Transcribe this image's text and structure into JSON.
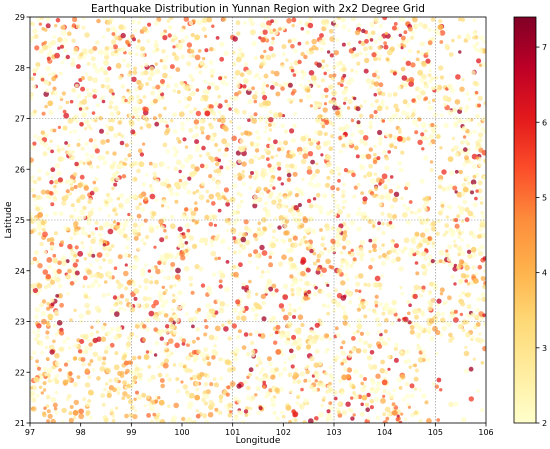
{
  "chart_data": {
    "type": "scatter",
    "title": "Earthquake Distribution in Yunnan Region with 2x2 Degree Grid",
    "xlabel": "Longitude",
    "ylabel": "Latitude",
    "xlim": [
      97,
      106
    ],
    "ylim": [
      21,
      29
    ],
    "xticks": [
      97,
      98,
      99,
      100,
      101,
      102,
      103,
      104,
      105,
      106
    ],
    "yticks": [
      21,
      22,
      23,
      24,
      25,
      26,
      27,
      28,
      29
    ],
    "grid": {
      "shown": true,
      "style": "dotted",
      "spacing_deg": 2,
      "vertical_lines_at": [
        97,
        99,
        101,
        103,
        105
      ],
      "horizontal_lines_at": [
        21,
        23,
        25,
        27,
        29
      ]
    },
    "colorbar": {
      "label": "",
      "range": [
        2,
        7.4
      ],
      "ticks": [
        2,
        3,
        4,
        5,
        6,
        7
      ],
      "colormap": "YlOrRd",
      "placement": "right"
    },
    "colormap_stops": [
      "#ffffcc",
      "#ffeda0",
      "#fed976",
      "#feb24c",
      "#fd8d3c",
      "#fc4e2a",
      "#e31a1c",
      "#bd0026",
      "#800026"
    ],
    "marker_opacity": 0.75,
    "series": [
      {
        "color_by": "magnitude",
        "points": [
          {
            "lon": 97.3,
            "lat": 28.4,
            "mag": 2.8
          },
          {
            "lon": 97.4,
            "lat": 27.3,
            "mag": 3.6
          },
          {
            "lon": 97.6,
            "lat": 26.2,
            "mag": 2.4
          },
          {
            "lon": 97.2,
            "lat": 25.1,
            "mag": 4.3
          },
          {
            "lon": 97.5,
            "lat": 24.2,
            "mag": 2.7
          },
          {
            "lon": 97.4,
            "lat": 23.1,
            "mag": 3.2
          },
          {
            "lon": 97.7,
            "lat": 21.8,
            "mag": 3.9
          },
          {
            "lon": 97.9,
            "lat": 21.2,
            "mag": 4.4
          },
          {
            "lon": 98.2,
            "lat": 21.6,
            "mag": 3.4
          },
          {
            "lon": 98.1,
            "lat": 22.7,
            "mag": 2.5
          },
          {
            "lon": 98.4,
            "lat": 23.9,
            "mag": 2.9
          },
          {
            "lon": 98.3,
            "lat": 25.6,
            "mag": 2.6
          },
          {
            "lon": 98.6,
            "lat": 26.8,
            "mag": 3.1
          },
          {
            "lon": 98.5,
            "lat": 28.1,
            "mag": 2.3
          },
          {
            "lon": 98.8,
            "lat": 28.8,
            "mag": 2.9
          },
          {
            "lon": 99.0,
            "lat": 27.4,
            "mag": 2.5
          },
          {
            "lon": 99.2,
            "lat": 26.1,
            "mag": 3.0
          },
          {
            "lon": 99.4,
            "lat": 24.8,
            "mag": 2.4
          },
          {
            "lon": 99.1,
            "lat": 23.6,
            "mag": 2.8
          },
          {
            "lon": 99.3,
            "lat": 22.3,
            "mag": 3.5
          },
          {
            "lon": 99.6,
            "lat": 21.4,
            "mag": 3.8
          },
          {
            "lon": 99.8,
            "lat": 22.9,
            "mag": 2.6
          },
          {
            "lon": 99.7,
            "lat": 24.3,
            "mag": 2.3
          },
          {
            "lon": 99.9,
            "lat": 25.7,
            "mag": 2.7
          },
          {
            "lon": 100.1,
            "lat": 27.6,
            "mag": 2.6
          },
          {
            "lon": 100.3,
            "lat": 28.6,
            "mag": 3.2
          },
          {
            "lon": 100.5,
            "lat": 27.1,
            "mag": 5.9
          },
          {
            "lon": 100.2,
            "lat": 25.9,
            "mag": 2.5
          },
          {
            "lon": 100.4,
            "lat": 24.6,
            "mag": 2.2
          },
          {
            "lon": 100.6,
            "lat": 23.2,
            "mag": 3.0
          },
          {
            "lon": 100.3,
            "lat": 21.5,
            "mag": 4.1
          },
          {
            "lon": 100.9,
            "lat": 22.2,
            "mag": 3.3
          },
          {
            "lon": 100.8,
            "lat": 23.9,
            "mag": 2.4
          },
          {
            "lon": 101.0,
            "lat": 25.4,
            "mag": 2.8
          },
          {
            "lon": 101.2,
            "lat": 26.4,
            "mag": 2.5
          },
          {
            "lon": 101.1,
            "lat": 27.9,
            "mag": 2.9
          },
          {
            "lon": 101.4,
            "lat": 28.7,
            "mag": 2.6
          },
          {
            "lon": 101.7,
            "lat": 27.3,
            "mag": 3.3
          },
          {
            "lon": 101.6,
            "lat": 25.9,
            "mag": 2.4
          },
          {
            "lon": 101.8,
            "lat": 24.5,
            "mag": 2.7
          },
          {
            "lon": 101.5,
            "lat": 23.3,
            "mag": 3.1
          },
          {
            "lon": 101.9,
            "lat": 22.4,
            "mag": 4.9
          },
          {
            "lon": 102.1,
            "lat": 21.3,
            "mag": 3.6
          },
          {
            "lon": 102.3,
            "lat": 22.8,
            "mag": 2.6
          },
          {
            "lon": 102.2,
            "lat": 24.1,
            "mag": 2.5
          },
          {
            "lon": 102.4,
            "lat": 26.6,
            "mag": 2.7
          },
          {
            "lon": 102.6,
            "lat": 27.8,
            "mag": 3.0
          },
          {
            "lon": 102.8,
            "lat": 28.9,
            "mag": 2.5
          },
          {
            "lon": 103.0,
            "lat": 27.5,
            "mag": 2.7
          },
          {
            "lon": 102.9,
            "lat": 26.1,
            "mag": 2.4
          },
          {
            "lon": 103.1,
            "lat": 24.8,
            "mag": 2.3
          },
          {
            "lon": 103.0,
            "lat": 23.4,
            "mag": 2.6
          },
          {
            "lon": 103.2,
            "lat": 21.9,
            "mag": 4.2
          },
          {
            "lon": 103.6,
            "lat": 21.5,
            "mag": 3.7
          },
          {
            "lon": 103.5,
            "lat": 22.9,
            "mag": 2.5
          },
          {
            "lon": 103.7,
            "lat": 25.9,
            "mag": 2.8
          },
          {
            "lon": 103.9,
            "lat": 27.2,
            "mag": 3.2
          },
          {
            "lon": 104.1,
            "lat": 28.3,
            "mag": 2.9
          },
          {
            "lon": 104.3,
            "lat": 26.6,
            "mag": 5.6
          },
          {
            "lon": 104.4,
            "lat": 25.1,
            "mag": 2.5
          },
          {
            "lon": 104.0,
            "lat": 21.8,
            "mag": 5.3
          },
          {
            "lon": 104.2,
            "lat": 21.2,
            "mag": 4.6
          },
          {
            "lon": 104.6,
            "lat": 23.2,
            "mag": 2.4
          },
          {
            "lon": 104.8,
            "lat": 24.6,
            "mag": 2.6
          },
          {
            "lon": 104.7,
            "lat": 27.9,
            "mag": 3.1
          },
          {
            "lon": 105.1,
            "lat": 28.8,
            "mag": 4.0
          },
          {
            "lon": 105.3,
            "lat": 26.2,
            "mag": 3.4
          },
          {
            "lon": 105.6,
            "lat": 25.6,
            "mag": 3.6
          },
          {
            "lon": 105.8,
            "lat": 23.8,
            "mag": 3.9
          },
          {
            "lon": 105.5,
            "lat": 22.9,
            "mag": 2.5
          },
          {
            "lon": 105.2,
            "lat": 27.4,
            "mag": 2.6
          }
        ]
      }
    ]
  }
}
